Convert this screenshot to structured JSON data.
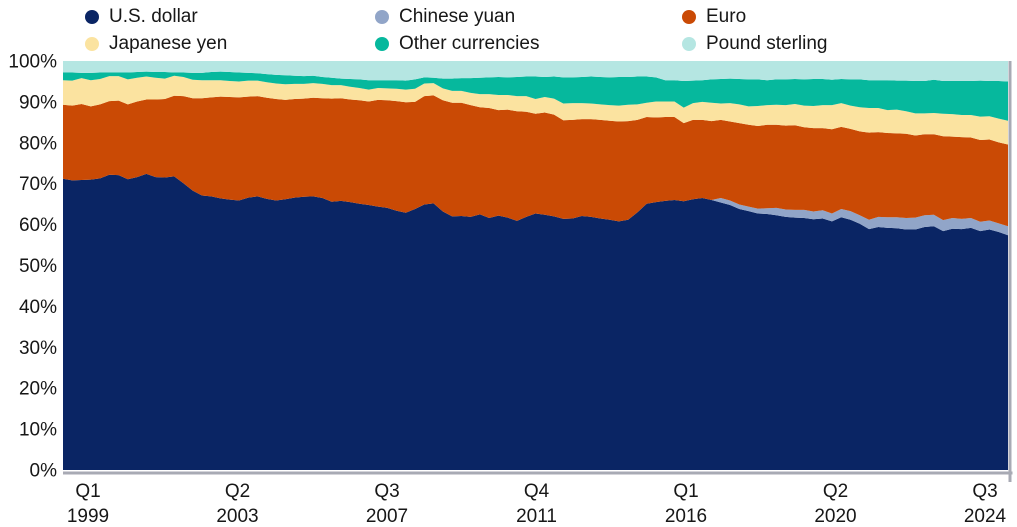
{
  "legend": {
    "items": [
      {
        "label": "U.S. dollar",
        "color": "#0a2564"
      },
      {
        "label": "Japanese yen",
        "color": "#fbe3a0"
      },
      {
        "label": "Chinese yuan",
        "color": "#91a5c8"
      },
      {
        "label": "Other currencies",
        "color": "#06b89d"
      },
      {
        "label": "Euro",
        "color": "#ca4a05"
      },
      {
        "label": "Pound sterling",
        "color": "#b5e6e2"
      }
    ]
  },
  "axes": {
    "y_ticks": [
      {
        "label": "0%",
        "value": 0
      },
      {
        "label": "10%",
        "value": 10
      },
      {
        "label": "20%",
        "value": 20
      },
      {
        "label": "30%",
        "value": 30
      },
      {
        "label": "40%",
        "value": 40
      },
      {
        "label": "50%",
        "value": 50
      },
      {
        "label": "60%",
        "value": 60
      },
      {
        "label": "70%",
        "value": 70
      },
      {
        "label": "80%",
        "value": 80
      },
      {
        "label": "90%",
        "value": 90
      },
      {
        "label": "100%",
        "value": 100
      }
    ],
    "x_ticks": [
      {
        "quarter": "Q1",
        "year": "1999",
        "index": 0
      },
      {
        "quarter": "Q2",
        "year": "2003",
        "index": 17
      },
      {
        "quarter": "Q3",
        "year": "2007",
        "index": 34
      },
      {
        "quarter": "Q4",
        "year": "2011",
        "index": 51
      },
      {
        "quarter": "Q1",
        "year": "2016",
        "index": 68
      },
      {
        "quarter": "Q2",
        "year": "2020",
        "index": 85
      },
      {
        "quarter": "Q3",
        "year": "2024",
        "index": 102
      }
    ]
  },
  "chart_data": {
    "type": "area",
    "stacked": true,
    "unit": "%",
    "x_start": "Q1 1999",
    "x_end": "Q3 2024",
    "frequency": "quarterly",
    "n_points": 103,
    "ylim": [
      0,
      100
    ],
    "grid": false,
    "legend_position": "top",
    "series": [
      {
        "name": "U.S. dollar",
        "color": "#0a2564",
        "values": [
          71.2,
          70.8,
          70.9,
          71.0,
          71.3,
          72.2,
          72.1,
          71.1,
          71.6,
          72.4,
          71.6,
          71.5,
          71.8,
          70.1,
          68.3,
          67.1,
          66.9,
          66.4,
          66.1,
          65.9,
          66.6,
          66.9,
          66.3,
          65.9,
          66.2,
          66.6,
          66.8,
          66.9,
          66.5,
          65.6,
          65.8,
          65.5,
          65.1,
          64.8,
          64.4,
          64.1,
          63.4,
          62.9,
          63.8,
          64.9,
          65.2,
          63.2,
          62.0,
          62.1,
          61.9,
          62.5,
          61.6,
          62.2,
          61.7,
          60.9,
          61.9,
          62.7,
          62.4,
          62.0,
          61.4,
          61.5,
          62.1,
          61.9,
          61.5,
          61.2,
          60.8,
          61.2,
          63.0,
          65.1,
          65.5,
          65.8,
          66.0,
          65.7,
          66.2,
          66.5,
          66.0,
          65.4,
          64.8,
          63.8,
          63.3,
          62.7,
          62.6,
          62.3,
          61.9,
          61.7,
          61.6,
          61.3,
          61.5,
          60.8,
          61.8,
          61.2,
          60.2,
          58.9,
          59.4,
          59.2,
          59.1,
          58.8,
          58.8,
          59.4,
          59.6,
          58.4,
          59.0,
          58.9,
          59.2,
          58.4,
          58.8,
          58.2,
          57.4
        ]
      },
      {
        "name": "Chinese yuan",
        "color": "#91a5c8",
        "values": [
          0,
          0,
          0,
          0,
          0,
          0,
          0,
          0,
          0,
          0,
          0,
          0,
          0,
          0,
          0,
          0,
          0,
          0,
          0,
          0,
          0,
          0,
          0,
          0,
          0,
          0,
          0,
          0,
          0,
          0,
          0,
          0,
          0,
          0,
          0,
          0,
          0,
          0,
          0,
          0,
          0,
          0,
          0,
          0,
          0,
          0,
          0,
          0,
          0,
          0,
          0,
          0,
          0,
          0,
          0,
          0,
          0,
          0,
          0,
          0,
          0,
          0,
          0,
          0,
          0,
          0,
          0,
          0,
          0,
          0,
          0,
          1.1,
          1.1,
          1.1,
          1.1,
          1.2,
          1.4,
          1.8,
          1.8,
          1.9,
          2.0,
          1.9,
          2.0,
          1.9,
          2.0,
          2.1,
          2.1,
          2.3,
          2.5,
          2.6,
          2.7,
          2.8,
          2.9,
          2.9,
          2.8,
          2.7,
          2.6,
          2.5,
          2.4,
          2.3,
          2.2,
          2.1,
          2.2
        ]
      },
      {
        "name": "Euro",
        "color": "#ca4a05",
        "values": [
          18.1,
          18.3,
          18.6,
          17.9,
          18.1,
          18.0,
          18.2,
          18.3,
          18.5,
          18.2,
          19.0,
          19.2,
          19.7,
          21.3,
          22.6,
          23.8,
          24.2,
          24.9,
          25.1,
          25.2,
          24.7,
          24.5,
          24.7,
          24.8,
          24.3,
          24.1,
          24.0,
          24.1,
          24.4,
          25.2,
          25.1,
          25.1,
          25.3,
          25.3,
          26.1,
          26.3,
          26.8,
          27.0,
          26.2,
          26.5,
          26.4,
          27.2,
          27.8,
          27.7,
          27.3,
          26.2,
          26.9,
          25.8,
          26.4,
          26.8,
          25.7,
          24.4,
          25.0,
          24.9,
          24.1,
          24.1,
          23.7,
          23.9,
          24.1,
          24.2,
          24.4,
          24.1,
          22.6,
          21.2,
          20.7,
          20.5,
          20.3,
          19.1,
          19.4,
          19.1,
          19.3,
          19.1,
          19.3,
          19.9,
          20.0,
          20.2,
          20.4,
          20.3,
          20.5,
          20.7,
          20.2,
          20.4,
          20.1,
          20.6,
          20.1,
          20.1,
          20.5,
          21.3,
          20.7,
          20.6,
          20.5,
          20.6,
          20.1,
          19.8,
          19.7,
          20.5,
          19.9,
          20.0,
          19.7,
          20.0,
          19.8,
          19.8,
          20.0
        ]
      },
      {
        "name": "Japanese yen",
        "color": "#fbe3a0",
        "values": [
          6.0,
          6.1,
          6.3,
          6.4,
          6.2,
          6.1,
          6.0,
          6.1,
          5.8,
          5.6,
          5.3,
          5.0,
          4.9,
          4.7,
          4.5,
          4.4,
          4.2,
          4.0,
          3.9,
          3.9,
          3.9,
          3.8,
          3.8,
          3.8,
          3.8,
          3.7,
          3.6,
          3.6,
          3.5,
          3.3,
          3.2,
          3.1,
          3.0,
          2.9,
          2.9,
          2.9,
          3.0,
          3.1,
          3.2,
          3.1,
          3.0,
          2.9,
          2.9,
          2.9,
          3.0,
          3.2,
          3.4,
          3.7,
          3.6,
          3.7,
          3.8,
          3.6,
          3.8,
          3.9,
          4.1,
          4.1,
          3.9,
          3.8,
          3.8,
          3.8,
          3.9,
          4.0,
          3.8,
          3.5,
          3.9,
          3.8,
          3.8,
          3.8,
          4.1,
          4.4,
          4.5,
          4.0,
          4.5,
          4.6,
          4.5,
          4.9,
          4.8,
          4.9,
          5.0,
          5.2,
          5.3,
          5.4,
          5.6,
          5.9,
          5.8,
          5.7,
          5.9,
          6.0,
          5.9,
          5.6,
          5.8,
          5.5,
          5.4,
          5.1,
          5.2,
          5.5,
          5.5,
          5.4,
          5.5,
          5.7,
          5.7,
          5.8,
          5.8
        ]
      },
      {
        "name": "Other currencies",
        "color": "#06b89d",
        "residual_to_100": true,
        "values": []
      },
      {
        "name": "Pound sterling",
        "color": "#b5e6e2",
        "values": [
          2.8,
          2.8,
          2.9,
          2.9,
          2.8,
          2.8,
          2.8,
          2.8,
          2.7,
          2.6,
          2.7,
          2.7,
          2.8,
          2.8,
          2.9,
          2.9,
          2.7,
          2.6,
          2.7,
          2.8,
          2.9,
          3.0,
          3.2,
          3.4,
          3.5,
          3.6,
          3.7,
          3.6,
          3.9,
          4.1,
          4.3,
          4.4,
          4.5,
          4.7,
          4.7,
          4.7,
          4.7,
          4.8,
          4.5,
          4.0,
          4.1,
          4.3,
          4.3,
          4.2,
          4.2,
          4.1,
          4.0,
          3.9,
          4.0,
          3.9,
          3.8,
          3.8,
          3.9,
          3.8,
          4.0,
          4.0,
          3.9,
          3.8,
          3.9,
          4.0,
          3.9,
          3.9,
          3.8,
          3.8,
          4.0,
          4.7,
          4.7,
          4.9,
          4.8,
          4.7,
          4.5,
          4.4,
          4.3,
          4.4,
          4.5,
          4.5,
          4.7,
          4.5,
          4.5,
          4.4,
          4.5,
          4.4,
          4.4,
          4.6,
          4.4,
          4.5,
          4.5,
          4.7,
          4.7,
          4.7,
          4.8,
          4.8,
          4.9,
          4.9,
          4.6,
          4.9,
          4.9,
          4.9,
          4.9,
          4.8,
          4.9,
          4.9,
          5.0
        ]
      }
    ],
    "spine_color": "#a8aab4"
  }
}
